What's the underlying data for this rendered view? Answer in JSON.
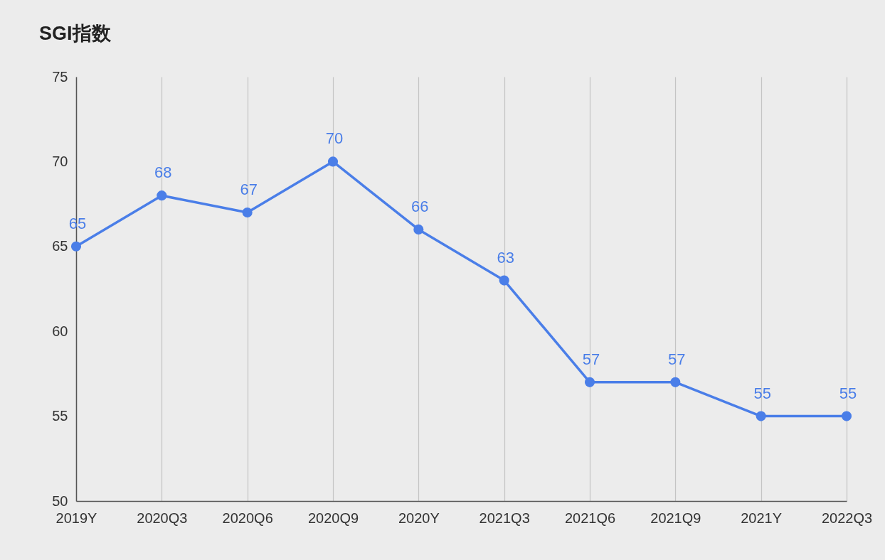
{
  "chart_data": {
    "type": "line",
    "title": "SGI指数",
    "categories": [
      "2019Y",
      "2020Q3",
      "2020Q6",
      "2020Q9",
      "2020Y",
      "2021Q3",
      "2021Q6",
      "2021Q9",
      "2021Y",
      "2022Q3"
    ],
    "series": [
      {
        "color": "#4a7ee8",
        "values": [
          65,
          68,
          67,
          70,
          66,
          63,
          57,
          57,
          55,
          55
        ]
      }
    ],
    "ylim": [
      50,
      75
    ],
    "yticks": [
      50,
      55,
      60,
      65,
      70,
      75
    ],
    "grid": "x",
    "marker": "circle",
    "line_style": "solid",
    "data_labels": true,
    "legend": false
  }
}
